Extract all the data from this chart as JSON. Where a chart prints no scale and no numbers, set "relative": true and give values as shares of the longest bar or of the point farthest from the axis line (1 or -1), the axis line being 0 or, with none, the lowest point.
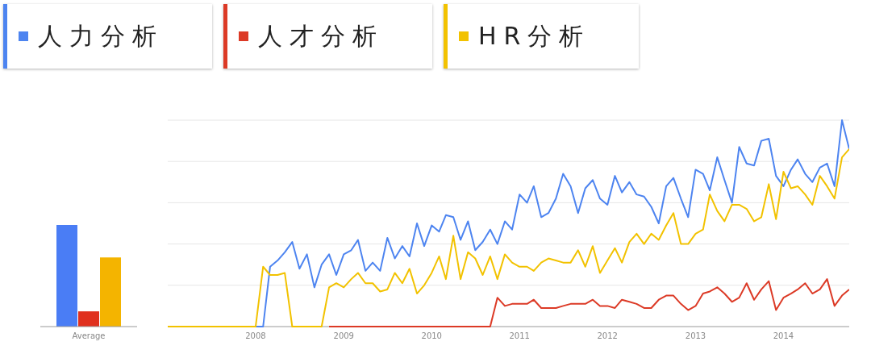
{
  "chart_data": [
    {
      "type": "bar",
      "relative": true,
      "categories": [
        "Average"
      ],
      "series": [
        {
          "color": "#4a7df5",
          "values": [
            1
          ]
        },
        {
          "color": "#e0301e",
          "values": [
            0.15
          ]
        },
        {
          "color": "#f4b400",
          "values": [
            0.68
          ]
        }
      ]
    },
    {
      "type": "line",
      "relative": true,
      "grid": "y",
      "legend": "top left",
      "marker": "none",
      "x": [
        "2007-01",
        "2007-02",
        "2007-03",
        "2007-04",
        "2007-05",
        "2007-06",
        "2007-07",
        "2007-08",
        "2007-09",
        "2007-10",
        "2007-11",
        "2007-12",
        "2008-01",
        "2008-02",
        "2008-03",
        "2008-04",
        "2008-05",
        "2008-06",
        "2008-07",
        "2008-08",
        "2008-09",
        "2008-10",
        "2008-11",
        "2008-12",
        "2009-01",
        "2009-02",
        "2009-03",
        "2009-04",
        "2009-05",
        "2009-06",
        "2009-07",
        "2009-08",
        "2009-09",
        "2009-10",
        "2009-11",
        "2009-12",
        "2010-01",
        "2010-02",
        "2010-03",
        "2010-04",
        "2010-05",
        "2010-06",
        "2010-07",
        "2010-08",
        "2010-09",
        "2010-10",
        "2010-11",
        "2010-12",
        "2011-01",
        "2011-02",
        "2011-03",
        "2011-04",
        "2011-05",
        "2011-06",
        "2011-07",
        "2011-08",
        "2011-09",
        "2011-10",
        "2011-11",
        "2011-12",
        "2012-01",
        "2012-02",
        "2012-03",
        "2012-04",
        "2012-05",
        "2012-06",
        "2012-07",
        "2012-08",
        "2012-09",
        "2012-10",
        "2012-11",
        "2012-12",
        "2013-01",
        "2013-02",
        "2013-03",
        "2013-04",
        "2013-05",
        "2013-06",
        "2013-07",
        "2013-08",
        "2013-09",
        "2013-10",
        "2013-11",
        "2013-12",
        "2014-01",
        "2014-02",
        "2014-03",
        "2014-04",
        "2014-05",
        "2014-06",
        "2014-07",
        "2014-08",
        "2014-09",
        "2014-10"
      ],
      "xlim": [
        "2007-01",
        "2014-10"
      ],
      "xticks": [
        {
          "value": "2008-01",
          "label": "2008"
        },
        {
          "value": "2009-01",
          "label": "2009"
        },
        {
          "value": "2010-01",
          "label": "2010"
        },
        {
          "value": "2011-01",
          "label": "2011"
        },
        {
          "value": "2012-01",
          "label": "2012"
        },
        {
          "value": "2013-01",
          "label": "2013"
        },
        {
          "value": "2014-01",
          "label": "2014"
        }
      ],
      "series": [
        {
          "name": "人力分析",
          "color": "#4d84f0",
          "values": [
            null,
            null,
            null,
            null,
            null,
            null,
            null,
            null,
            null,
            null,
            null,
            null,
            0,
            0,
            0.29,
            0.32,
            0.36,
            0.41,
            0.28,
            0.35,
            0.19,
            0.3,
            0.35,
            0.25,
            0.35,
            0.37,
            0.42,
            0.27,
            0.31,
            0.27,
            0.43,
            0.33,
            0.39,
            0.34,
            0.5,
            0.39,
            0.49,
            0.46,
            0.54,
            0.53,
            0.42,
            0.51,
            0.37,
            0.41,
            0.47,
            0.4,
            0.51,
            0.47,
            0.64,
            0.6,
            0.68,
            0.53,
            0.55,
            0.62,
            0.74,
            0.68,
            0.55,
            0.67,
            0.71,
            0.62,
            0.59,
            0.73,
            0.65,
            0.7,
            0.64,
            0.63,
            0.58,
            0.5,
            0.68,
            0.72,
            0.62,
            0.53,
            0.76,
            0.74,
            0.66,
            0.82,
            0.71,
            0.6,
            0.87,
            0.79,
            0.78,
            0.9,
            0.91,
            0.73,
            0.68,
            0.76,
            0.81,
            0.74,
            0.7,
            0.77,
            0.79,
            0.68,
            1,
            0.86
          ]
        },
        {
          "name": "人才分析",
          "color": "#dc3a26",
          "values": [
            null,
            null,
            null,
            null,
            null,
            null,
            null,
            null,
            null,
            null,
            null,
            null,
            null,
            null,
            null,
            null,
            null,
            null,
            null,
            null,
            null,
            null,
            0,
            0,
            0,
            0,
            0,
            0,
            0,
            0,
            0,
            0,
            0,
            0,
            0,
            0,
            0,
            0,
            0,
            0,
            0,
            0,
            0,
            0,
            0,
            0.14,
            0.1,
            0.11,
            0.11,
            0.11,
            0.13,
            0.09,
            0.09,
            0.09,
            0.1,
            0.11,
            0.11,
            0.11,
            0.13,
            0.1,
            0.1,
            0.09,
            0.13,
            0.12,
            0.11,
            0.09,
            0.09,
            0.13,
            0.15,
            0.15,
            0.11,
            0.08,
            0.1,
            0.16,
            0.17,
            0.19,
            0.16,
            0.12,
            0.14,
            0.21,
            0.13,
            0.18,
            0.22,
            0.08,
            0.14,
            0.16,
            0.18,
            0.21,
            0.16,
            0.18,
            0.23,
            0.1,
            0.15,
            0.18
          ]
        },
        {
          "name": "HR分析",
          "color": "#f2c200",
          "values": [
            0,
            0,
            0,
            0,
            0,
            0,
            0,
            0,
            0,
            0,
            0,
            0,
            0,
            0.29,
            0.25,
            0.25,
            0.26,
            0,
            0,
            0,
            0,
            0,
            0.19,
            0.21,
            0.19,
            0.23,
            0.26,
            0.21,
            0.21,
            0.17,
            0.18,
            0.26,
            0.21,
            0.28,
            0.16,
            0.2,
            0.26,
            0.34,
            0.23,
            0.44,
            0.23,
            0.36,
            0.33,
            0.25,
            0.34,
            0.23,
            0.35,
            0.31,
            0.29,
            0.29,
            0.27,
            0.31,
            0.33,
            0.32,
            0.31,
            0.31,
            0.37,
            0.29,
            0.39,
            0.26,
            0.32,
            0.38,
            0.31,
            0.41,
            0.45,
            0.4,
            0.45,
            0.42,
            0.49,
            0.55,
            0.4,
            0.4,
            0.45,
            0.47,
            0.64,
            0.56,
            0.51,
            0.59,
            0.59,
            0.57,
            0.51,
            0.53,
            0.69,
            0.52,
            0.75,
            0.67,
            0.68,
            0.64,
            0.59,
            0.73,
            0.68,
            0.62,
            0.82,
            0.86
          ]
        }
      ]
    }
  ]
}
